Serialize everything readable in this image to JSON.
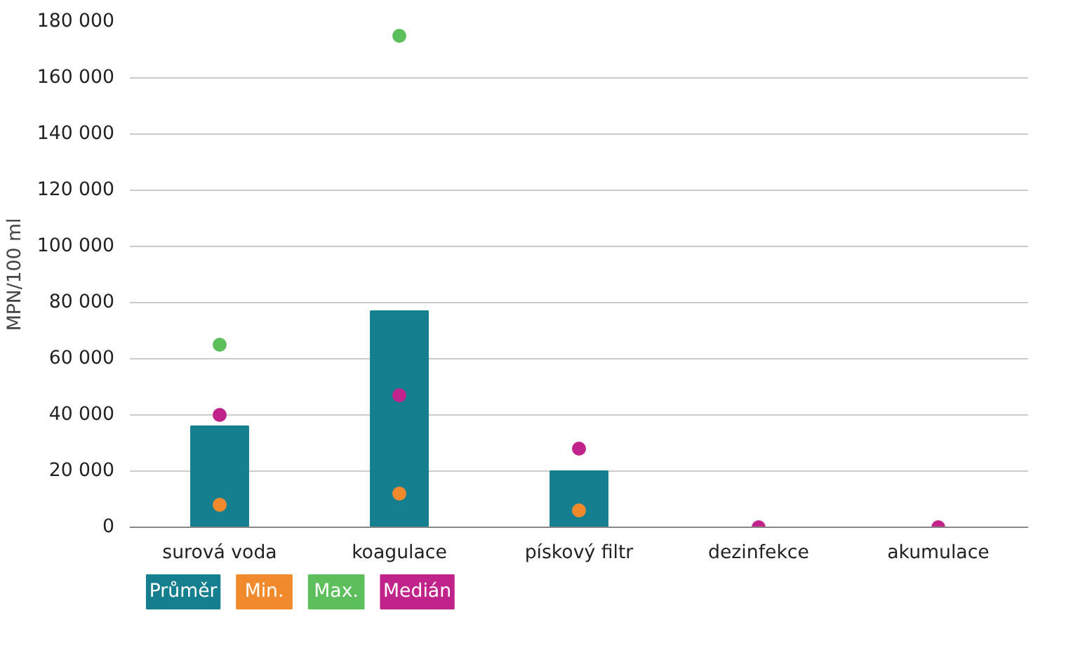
{
  "chart_data": {
    "type": "bar",
    "ylabel": "MPN/100 ml",
    "categories": [
      "surová voda",
      "koagulace",
      "pískový filtr",
      "dezinfekce",
      "akumulace"
    ],
    "ylim": [
      0,
      180000
    ],
    "yticks": [
      {
        "value": 0,
        "label": "0"
      },
      {
        "value": 20000,
        "label": "20 000"
      },
      {
        "value": 40000,
        "label": "40 000"
      },
      {
        "value": 60000,
        "label": "60 000"
      },
      {
        "value": 80000,
        "label": "80 000"
      },
      {
        "value": 100000,
        "label": "100 000"
      },
      {
        "value": 120000,
        "label": "120 000"
      },
      {
        "value": 140000,
        "label": "140 000"
      },
      {
        "value": 160000,
        "label": "160 000"
      },
      {
        "value": 180000,
        "label": "180 000"
      }
    ],
    "grid": "y",
    "legend": "bottom left",
    "marker": "circle",
    "series": [
      {
        "name": "Průměr",
        "color": "#167f8f",
        "values": [
          36000,
          77000,
          20000,
          0,
          0
        ]
      },
      {
        "name": "Min.",
        "type": "scatter",
        "color": "#f08a2c",
        "values": [
          8000,
          12000,
          6000,
          null,
          null
        ]
      },
      {
        "name": "Max.",
        "type": "scatter",
        "color": "#5cbf5c",
        "values": [
          65000,
          175000,
          null,
          null,
          null
        ]
      },
      {
        "name": "Medián",
        "type": "scatter",
        "color": "#c0248a",
        "values": [
          40000,
          47000,
          28000,
          0,
          0
        ]
      }
    ]
  }
}
